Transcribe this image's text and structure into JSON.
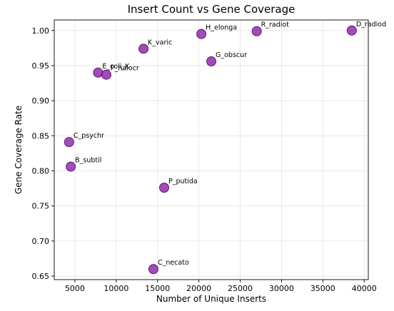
{
  "chart_data": {
    "type": "scatter",
    "title": "Insert Count vs Gene Coverage",
    "xlabel": "Number of Unique Inserts",
    "ylabel": "Gene Coverage Rate",
    "xlim": [
      2500,
      40500
    ],
    "ylim": [
      0.645,
      1.015
    ],
    "xticks": [
      5000,
      10000,
      15000,
      20000,
      25000,
      30000,
      35000,
      40000
    ],
    "xtick_labels": [
      "5000",
      "10000",
      "15000",
      "20000",
      "25000",
      "30000",
      "35000",
      "40000"
    ],
    "yticks": [
      0.65,
      0.7,
      0.75,
      0.8,
      0.85,
      0.9,
      0.95,
      1.0
    ],
    "ytick_labels": [
      "0.65",
      "0.70",
      "0.75",
      "0.80",
      "0.85",
      "0.90",
      "0.95",
      "1.00"
    ],
    "grid": true,
    "marker_color": "#8e24aa",
    "marker_edge_color": "#5e1775",
    "points": [
      {
        "label": "E_coli_K",
        "x": 7800,
        "y": 0.94
      },
      {
        "label": "P_halocr",
        "x": 8800,
        "y": 0.937
      },
      {
        "label": "K_varic",
        "x": 13300,
        "y": 0.974
      },
      {
        "label": "H_elonga",
        "x": 20300,
        "y": 0.995
      },
      {
        "label": "R_radiot",
        "x": 27000,
        "y": 0.999
      },
      {
        "label": "D_radiod",
        "x": 38500,
        "y": 1.0
      },
      {
        "label": "G_obscur",
        "x": 21500,
        "y": 0.956
      },
      {
        "label": "C_psychr",
        "x": 4300,
        "y": 0.841
      },
      {
        "label": "B_subtil",
        "x": 4500,
        "y": 0.806
      },
      {
        "label": "P_putida",
        "x": 15800,
        "y": 0.776
      },
      {
        "label": "C_necato",
        "x": 14500,
        "y": 0.66
      }
    ]
  }
}
